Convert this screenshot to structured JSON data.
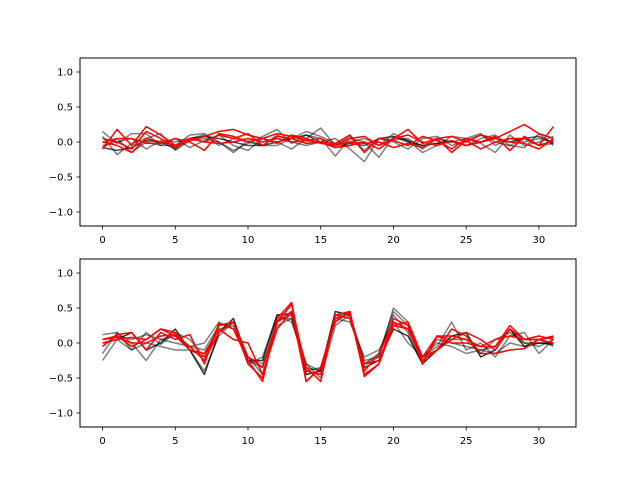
{
  "chart_data": [
    {
      "type": "line",
      "xlim": [
        -1.55,
        32.55
      ],
      "ylim": [
        -1.2,
        1.2
      ],
      "xticks": [
        0,
        5,
        10,
        15,
        20,
        25,
        30
      ],
      "yticks": [
        -1.0,
        -0.5,
        0.0,
        0.5,
        1.0
      ],
      "xtick_labels": [
        "0",
        "5",
        "10",
        "15",
        "20",
        "25",
        "30"
      ],
      "ytick_labels": [
        "−1.0",
        "−0.5",
        "0.0",
        "0.5",
        "1.0"
      ],
      "grid": false,
      "series": [
        {
          "color": "#000000",
          "alpha": 0.5,
          "values": [
            0.15,
            -0.02,
            0.12,
            0.12,
            -0.05,
            0.05,
            -0.08,
            0.02,
            0.1,
            -0.05,
            -0.12,
            0.05,
            0.0,
            -0.1,
            0.05,
            0.2,
            -0.05,
            0.08,
            -0.12,
            0.05,
            0.03,
            0.05,
            -0.1,
            0.05,
            0.0,
            0.05,
            0.12,
            -0.05,
            0.05,
            0.0,
            0.05,
            0.0
          ]
        },
        {
          "color": "#000000",
          "alpha": 0.5,
          "values": [
            0.08,
            -0.18,
            -0.02,
            0.05,
            0.12,
            -0.12,
            0.02,
            0.05,
            0.0,
            -0.12,
            -0.02,
            0.08,
            0.18,
            -0.02,
            0.1,
            0.05,
            -0.2,
            0.05,
            0.0,
            -0.22,
            0.08,
            0.02,
            -0.15,
            -0.05,
            0.08,
            0.05,
            -0.02,
            -0.15,
            0.1,
            -0.05,
            0.0,
            0.08
          ]
        },
        {
          "color": "#000000",
          "alpha": 0.5,
          "values": [
            -0.05,
            0.0,
            0.05,
            -0.1,
            0.02,
            0.0,
            0.05,
            0.1,
            -0.05,
            0.05,
            0.0,
            -0.05,
            0.1,
            0.0,
            -0.05,
            0.0,
            0.05,
            -0.1,
            -0.28,
            0.05,
            0.0,
            -0.1,
            0.05,
            0.08,
            -0.05,
            0.02,
            0.1,
            0.0,
            -0.05,
            0.05,
            -0.05,
            -0.02
          ]
        },
        {
          "color": "#000000",
          "alpha": 0.5,
          "values": [
            0.0,
            0.05,
            -0.15,
            0.0,
            -0.05,
            -0.05,
            0.1,
            0.12,
            0.0,
            -0.15,
            0.02,
            -0.05,
            -0.05,
            0.05,
            0.15,
            0.08,
            -0.02,
            0.0,
            0.05,
            -0.05,
            0.12,
            0.02,
            -0.05,
            -0.02,
            0.0,
            -0.05,
            0.05,
            0.1,
            -0.05,
            -0.08,
            0.12,
            -0.05
          ]
        },
        {
          "color": "#000000",
          "alpha": 0.7,
          "values": [
            -0.08,
            -0.12,
            -0.08,
            0.02,
            0.0,
            -0.1,
            0.05,
            0.08,
            0.05,
            0.0,
            -0.05,
            -0.05,
            0.0,
            0.05,
            0.1,
            0.0,
            -0.08,
            -0.02,
            -0.05,
            0.05,
            0.08,
            0.0,
            -0.05,
            -0.02,
            0.02,
            -0.05,
            0.0,
            0.05,
            0.0,
            0.05,
            0.08,
            -0.02
          ]
        },
        {
          "color": "#ff0000",
          "alpha": 1.0,
          "values": [
            -0.1,
            0.18,
            -0.05,
            0.22,
            0.1,
            -0.05,
            0.02,
            0.08,
            0.15,
            0.18,
            0.1,
            0.05,
            0.12,
            0.08,
            0.02,
            0.05,
            -0.05,
            0.05,
            0.08,
            -0.05,
            0.05,
            0.18,
            -0.02,
            0.05,
            0.08,
            0.0,
            0.1,
            0.05,
            0.15,
            0.25,
            0.12,
            0.05
          ]
        },
        {
          "color": "#ff0000",
          "alpha": 1.0,
          "values": [
            0.05,
            0.0,
            -0.1,
            0.15,
            0.05,
            -0.08,
            0.05,
            0.0,
            0.1,
            0.05,
            0.12,
            -0.05,
            0.08,
            0.05,
            -0.02,
            0.0,
            -0.02,
            0.1,
            -0.15,
            0.05,
            0.02,
            -0.05,
            0.08,
            0.02,
            -0.1,
            0.05,
            0.0,
            0.08,
            -0.12,
            0.08,
            -0.05,
            0.22
          ]
        },
        {
          "color": "#ff0000",
          "alpha": 1.0,
          "values": [
            -0.08,
            0.05,
            0.05,
            -0.02,
            -0.02,
            0.05,
            0.0,
            -0.12,
            0.12,
            0.08,
            0.0,
            0.05,
            -0.02,
            0.1,
            0.05,
            -0.02,
            -0.05,
            0.0,
            -0.02,
            0.0,
            -0.08,
            -0.02,
            -0.08,
            0.05,
            -0.15,
            0.02,
            -0.1,
            0.0,
            0.05,
            0.05,
            -0.05,
            0.02
          ]
        },
        {
          "color": "#ff0000",
          "alpha": 1.0,
          "values": [
            0.0,
            -0.05,
            -0.15,
            0.05,
            0.0,
            -0.05,
            0.05,
            0.0,
            -0.02,
            0.0,
            0.05,
            0.0,
            0.05,
            0.0,
            0.02,
            0.0,
            -0.08,
            -0.05,
            0.0,
            -0.1,
            0.05,
            0.1,
            0.0,
            -0.05,
            0.02,
            -0.05,
            0.0,
            0.05,
            0.0,
            -0.02,
            -0.1,
            0.05
          ]
        }
      ]
    },
    {
      "type": "line",
      "xlim": [
        -1.55,
        32.55
      ],
      "ylim": [
        -1.2,
        1.2
      ],
      "xticks": [
        0,
        5,
        10,
        15,
        20,
        25,
        30
      ],
      "yticks": [
        -1.0,
        -0.5,
        0.0,
        0.5,
        1.0
      ],
      "xtick_labels": [
        "0",
        "5",
        "10",
        "15",
        "20",
        "25",
        "30"
      ],
      "ytick_labels": [
        "−1.0",
        "−0.5",
        "0.0",
        "0.5",
        "1.0"
      ],
      "grid": false,
      "series": [
        {
          "color": "#000000",
          "alpha": 0.5,
          "values": [
            0.12,
            0.15,
            -0.1,
            0.15,
            -0.02,
            0.15,
            0.05,
            -0.2,
            0.2,
            0.25,
            -0.3,
            -0.2,
            0.4,
            0.3,
            -0.3,
            -0.4,
            0.4,
            0.35,
            -0.3,
            -0.2,
            0.5,
            0.3,
            -0.2,
            -0.05,
            0.3,
            -0.1,
            0.0,
            -0.2,
            0.1,
            0.15,
            -0.15,
            0.05
          ]
        },
        {
          "color": "#000000",
          "alpha": 0.5,
          "values": [
            -0.25,
            0.05,
            -0.1,
            0.0,
            -0.05,
            -0.1,
            -0.1,
            -0.4,
            0.1,
            0.3,
            -0.2,
            -0.3,
            0.25,
            0.35,
            -0.4,
            -0.35,
            0.35,
            0.3,
            -0.2,
            -0.1,
            0.3,
            0.0,
            -0.2,
            0.0,
            -0.05,
            -0.15,
            -0.1,
            -0.15,
            0.0,
            -0.05,
            0.05,
            -0.05
          ]
        },
        {
          "color": "#000000",
          "alpha": 0.5,
          "values": [
            -0.15,
            0.15,
            0.0,
            -0.25,
            0.05,
            0.1,
            -0.05,
            0.0,
            0.3,
            0.2,
            -0.2,
            -0.45,
            0.3,
            0.4,
            -0.3,
            -0.5,
            0.25,
            0.4,
            -0.3,
            -0.15,
            0.45,
            0.25,
            -0.25,
            0.05,
            0.0,
            -0.05,
            -0.1,
            -0.05,
            0.2,
            0.0,
            -0.05,
            0.05
          ]
        },
        {
          "color": "#000000",
          "alpha": 0.5,
          "values": [
            0.05,
            0.1,
            0.05,
            0.12,
            0.05,
            0.0,
            -0.05,
            -0.1,
            0.25,
            0.3,
            -0.25,
            -0.35,
            0.35,
            0.35,
            -0.35,
            -0.4,
            0.4,
            0.4,
            -0.25,
            -0.2,
            0.4,
            0.15,
            -0.3,
            0.1,
            0.05,
            0.05,
            -0.15,
            0.05,
            0.15,
            0.0,
            0.0,
            0.0
          ]
        },
        {
          "color": "#000000",
          "alpha": 0.8,
          "values": [
            0.0,
            0.05,
            0.15,
            -0.1,
            0.0,
            0.2,
            -0.1,
            -0.45,
            0.15,
            0.35,
            -0.25,
            -0.25,
            0.4,
            0.42,
            -0.45,
            -0.4,
            0.45,
            0.4,
            -0.35,
            -0.25,
            0.2,
            0.1,
            -0.3,
            -0.1,
            0.1,
            0.15,
            -0.2,
            -0.1,
            0.2,
            -0.05,
            0.0,
            -0.02
          ]
        },
        {
          "color": "#ff0000",
          "alpha": 1.0,
          "values": [
            0.05,
            0.1,
            -0.05,
            0.05,
            0.2,
            0.1,
            -0.1,
            -0.2,
            0.25,
            0.3,
            -0.3,
            -0.5,
            0.3,
            0.55,
            -0.4,
            -0.45,
            0.4,
            0.45,
            -0.4,
            -0.15,
            0.3,
            0.2,
            -0.25,
            -0.1,
            0.05,
            0.15,
            0.05,
            -0.1,
            0.2,
            0.05,
            0.1,
            0.05
          ]
        },
        {
          "color": "#ff0000",
          "alpha": 1.0,
          "values": [
            -0.05,
            0.12,
            0.15,
            -0.1,
            0.15,
            0.05,
            0.12,
            -0.3,
            0.28,
            0.2,
            -0.25,
            -0.55,
            0.35,
            0.58,
            -0.55,
            -0.35,
            0.3,
            0.45,
            -0.48,
            -0.3,
            0.35,
            0.25,
            -0.3,
            0.1,
            0.0,
            0.0,
            -0.05,
            -0.05,
            0.25,
            0.05,
            0.05,
            0.08
          ]
        },
        {
          "color": "#ff0000",
          "alpha": 1.0,
          "values": [
            0.0,
            0.05,
            0.08,
            0.05,
            0.2,
            0.15,
            -0.1,
            -0.15,
            0.2,
            0.05,
            0.0,
            -0.45,
            0.2,
            0.45,
            -0.55,
            -0.35,
            0.35,
            0.42,
            -0.45,
            -0.3,
            0.25,
            0.2,
            -0.2,
            0.1,
            0.1,
            0.05,
            -0.05,
            0.05,
            0.1,
            0.05,
            0.05,
            0.0
          ]
        },
        {
          "color": "#ff0000",
          "alpha": 1.0,
          "values": [
            0.05,
            0.08,
            0.0,
            0.0,
            0.1,
            0.12,
            -0.05,
            -0.25,
            0.15,
            0.3,
            -0.2,
            -0.35,
            0.3,
            0.45,
            -0.35,
            -0.55,
            0.4,
            0.35,
            -0.3,
            -0.25,
            0.25,
            0.3,
            -0.2,
            -0.1,
            0.2,
            0.1,
            -0.15,
            -0.15,
            -0.1,
            -0.08,
            0.05,
            0.1
          ]
        }
      ]
    }
  ]
}
